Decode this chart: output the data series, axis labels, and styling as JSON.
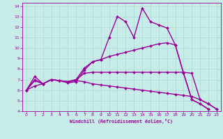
{
  "xlabel": "Windchill (Refroidissement éolien,°C)",
  "xlim": [
    -0.5,
    23.5
  ],
  "ylim": [
    4,
    14.3
  ],
  "xticks": [
    0,
    1,
    2,
    3,
    4,
    5,
    6,
    7,
    8,
    9,
    10,
    11,
    12,
    13,
    14,
    15,
    16,
    17,
    18,
    19,
    20,
    21,
    22,
    23
  ],
  "yticks": [
    4,
    5,
    6,
    7,
    8,
    9,
    10,
    11,
    12,
    13,
    14
  ],
  "bg_color": "#c8ece8",
  "grid_color": "#b0ddd8",
  "line_color": "#990099",
  "line_width": 1.0,
  "marker_size": 2.0,
  "x_values": [
    0,
    1,
    2,
    3,
    4,
    5,
    6,
    7,
    8,
    9,
    10,
    11,
    12,
    13,
    14,
    15,
    16,
    17,
    18,
    19,
    20,
    21,
    22,
    23
  ],
  "series": [
    [
      6.0,
      7.3,
      6.6,
      7.0,
      6.9,
      6.7,
      6.8,
      7.9,
      8.7,
      8.9,
      11.0,
      13.0,
      12.5,
      11.0,
      13.8,
      12.5,
      12.2,
      11.9,
      10.3,
      7.6,
      5.1,
      4.7,
      4.2,
      null
    ],
    [
      6.0,
      7.0,
      6.6,
      7.0,
      6.9,
      6.8,
      7.0,
      8.1,
      8.7,
      8.9,
      9.2,
      9.4,
      9.6,
      9.8,
      10.0,
      10.2,
      10.4,
      10.5,
      10.3,
      7.6,
      5.1,
      4.7,
      4.2,
      null
    ],
    [
      6.0,
      6.9,
      6.6,
      7.0,
      6.9,
      6.8,
      7.0,
      7.6,
      7.7,
      7.7,
      7.7,
      7.7,
      7.7,
      7.7,
      7.7,
      7.7,
      7.7,
      7.7,
      7.7,
      7.7,
      7.6,
      5.1,
      4.7,
      4.2
    ],
    [
      6.0,
      6.4,
      6.6,
      7.0,
      6.9,
      6.8,
      6.9,
      6.8,
      6.6,
      6.5,
      6.4,
      6.3,
      6.2,
      6.1,
      6.0,
      5.9,
      5.8,
      5.7,
      5.6,
      5.5,
      5.4,
      5.1,
      4.7,
      4.2
    ]
  ]
}
